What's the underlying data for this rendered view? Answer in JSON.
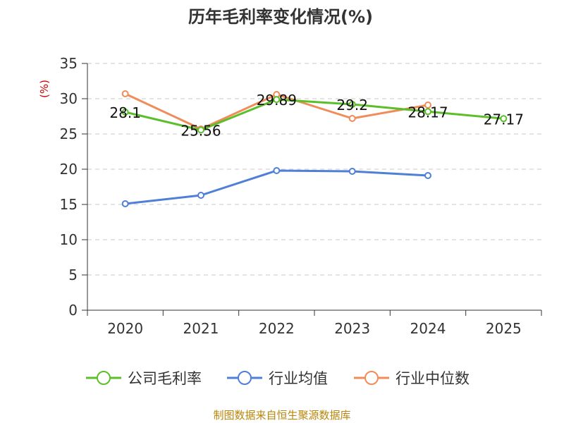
{
  "chart_data": {
    "type": "line",
    "title": "历年毛利率变化情况(%)",
    "ylabel": "(%)",
    "xlabel": "",
    "categories": [
      "2020",
      "2021",
      "2022",
      "2023",
      "2024",
      "2025"
    ],
    "ylim": [
      0,
      35
    ],
    "yticks": [
      0,
      5,
      10,
      15,
      20,
      25,
      30,
      35
    ],
    "grid": true,
    "legend_position": "bottom",
    "series": [
      {
        "name": "公司毛利率",
        "color": "#5cbf2a",
        "values": [
          28.1,
          25.56,
          29.89,
          29.2,
          28.17,
          27.17
        ],
        "labels": [
          "28.1",
          "25.56",
          "29.89",
          "29.2",
          "28.17",
          "27.17"
        ]
      },
      {
        "name": "行业均值",
        "color": "#4f7fd6",
        "values": [
          15.1,
          16.3,
          19.8,
          19.7,
          19.1,
          null
        ],
        "labels": []
      },
      {
        "name": "行业中位数",
        "color": "#f08c5a",
        "values": [
          30.7,
          25.7,
          30.6,
          27.2,
          29.1,
          null
        ],
        "labels": []
      }
    ],
    "source": "制图数据来自恒生聚源数据库"
  }
}
